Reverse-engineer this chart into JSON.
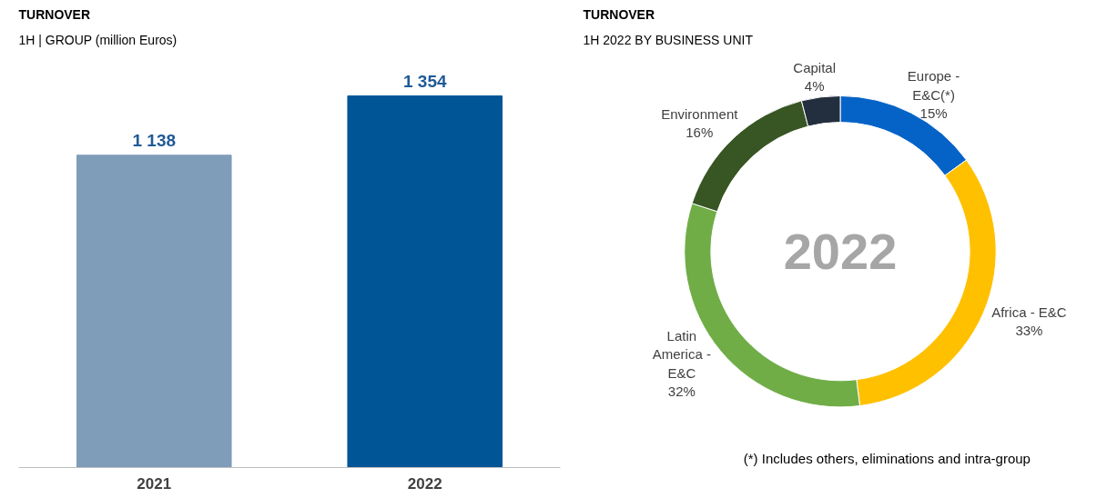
{
  "chart_data": [
    {
      "type": "bar",
      "title": "TURNOVER",
      "subtitle": "1H | GROUP (million Euros)",
      "categories": [
        "2021",
        "2022"
      ],
      "values": [
        1138,
        1354
      ],
      "colors": [
        "#7f9cb9",
        "#005596"
      ],
      "data_labels": true,
      "grid": false
    },
    {
      "type": "donut",
      "title": "TURNOVER",
      "subtitle": "1H 2022 BY BUSINESS UNIT",
      "categories": [
        "Europe - E&C(*)",
        "Africa - E&C",
        "Latin America - E&C",
        "Environment",
        "Capital"
      ],
      "values": [
        15,
        33,
        32,
        16,
        4
      ],
      "colors": [
        "#0563c8",
        "#ffc000",
        "#70ad47",
        "#375623",
        "#232f3e"
      ],
      "value_labels": [
        "15%",
        "33%",
        "32%",
        "16%",
        "4%"
      ],
      "annotations": [
        "2022",
        "(*) Includes others, eliminations and intra-group"
      ]
    }
  ]
}
